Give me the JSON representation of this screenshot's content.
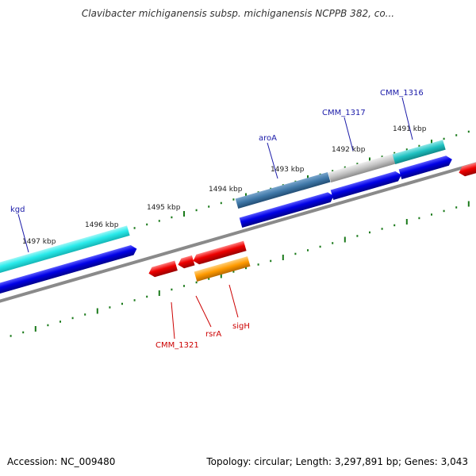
{
  "title": "Clavibacter michiganensis subsp. michiganensis NCPPB 382, co...",
  "footer": {
    "accession": "Accession: NC_009480",
    "stats": "Topology: circular; Length: 3,297,891 bp; Genes: 3,043"
  },
  "colors": {
    "backbone": "#8a8a8a",
    "tick": "#1a7a1a",
    "cds_forward": "#0000e6",
    "cds_reverse": "#ee0000",
    "gene_cyan": "#22e8e8",
    "gene_steel": "#3f78a8",
    "gene_grey": "#c8c8c8",
    "gene_teal": "#1ec0c0",
    "gene_orange": "#ff9a00",
    "label_forward": "#1a1aa8",
    "label_reverse": "#cc0000"
  },
  "kbp_labels": [
    "1491 kbp",
    "1492 kbp",
    "1493 kbp",
    "1494 kbp",
    "1495 kbp",
    "1496 kbp",
    "1497 kbp"
  ],
  "gene_labels_forward": [
    "CMM_1316",
    "CMM_1317",
    "aroA",
    "kgd"
  ],
  "gene_labels_reverse": [
    "CMM_1321",
    "rsrA",
    "sigH"
  ]
}
